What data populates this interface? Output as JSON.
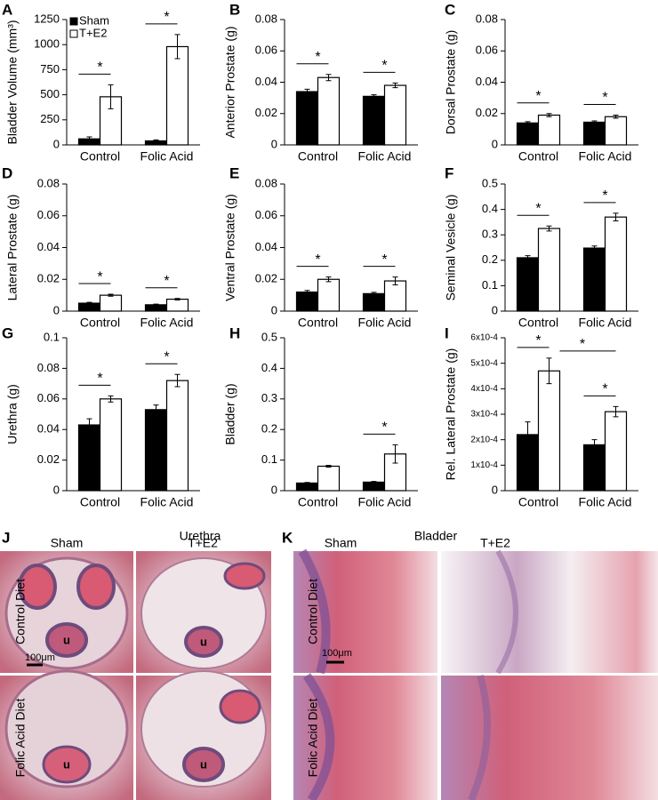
{
  "chart_data": [
    {
      "type": "bar",
      "panel": "A",
      "ylabel": "Bladder Volume (mm³)",
      "categories": [
        "Control",
        "Folic Acid"
      ],
      "legend": "upper left",
      "series": [
        {
          "name": "Sham",
          "color": "#000000",
          "values": [
            60,
            40
          ],
          "errors": [
            20,
            10
          ]
        },
        {
          "name": "T+E2",
          "color": "#ffffff",
          "values": [
            480,
            980
          ],
          "errors": [
            120,
            120
          ]
        }
      ],
      "ylim": [
        0,
        1250
      ],
      "yticks": [
        0,
        250,
        500,
        750,
        1000,
        1250
      ],
      "comparisons": [
        {
          "label": "*",
          "a": [
            0,
            0
          ],
          "b": [
            0,
            1
          ]
        },
        {
          "label": "*",
          "a": [
            1,
            0
          ],
          "b": [
            1,
            1
          ]
        }
      ]
    },
    {
      "type": "bar",
      "panel": "B",
      "ylabel": "Anterior Prostate (g)",
      "categories": [
        "Control",
        "Folic Acid"
      ],
      "series": [
        {
          "color": "#000000",
          "values": [
            0.034,
            0.031
          ],
          "errors": [
            0.0015,
            0.001
          ]
        },
        {
          "color": "#ffffff",
          "values": [
            0.043,
            0.038
          ],
          "errors": [
            0.002,
            0.0015
          ]
        }
      ],
      "ylim": [
        0,
        0.08
      ],
      "yticks": [
        0,
        0.02,
        0.04,
        0.06,
        0.08
      ],
      "comparisons": [
        {
          "label": "*",
          "a": [
            0,
            0
          ],
          "b": [
            0,
            1
          ]
        },
        {
          "label": "*",
          "a": [
            1,
            0
          ],
          "b": [
            1,
            1
          ]
        }
      ]
    },
    {
      "type": "bar",
      "panel": "C",
      "ylabel": "Dorsal Prostate (g)",
      "categories": [
        "Control",
        "Folic Acid"
      ],
      "series": [
        {
          "color": "#000000",
          "values": [
            0.014,
            0.0145
          ],
          "errors": [
            0.0008,
            0.0008
          ]
        },
        {
          "color": "#ffffff",
          "values": [
            0.019,
            0.018
          ],
          "errors": [
            0.001,
            0.001
          ]
        }
      ],
      "ylim": [
        0,
        0.08
      ],
      "yticks": [
        0,
        0.02,
        0.04,
        0.06,
        0.08
      ],
      "comparisons": [
        {
          "label": "*",
          "a": [
            0,
            0
          ],
          "b": [
            0,
            1
          ]
        },
        {
          "label": "*",
          "a": [
            1,
            0
          ],
          "b": [
            1,
            1
          ]
        }
      ]
    },
    {
      "type": "bar",
      "panel": "D",
      "ylabel": "Lateral Prostate (g)",
      "categories": [
        "Control",
        "Folic Acid"
      ],
      "series": [
        {
          "color": "#000000",
          "values": [
            0.005,
            0.004
          ],
          "errors": [
            0.0005,
            0.0004
          ]
        },
        {
          "color": "#ffffff",
          "values": [
            0.01,
            0.0075
          ],
          "errors": [
            0.0006,
            0.0005
          ]
        }
      ],
      "ylim": [
        0,
        0.08
      ],
      "yticks": [
        0,
        0.02,
        0.04,
        0.06,
        0.08
      ],
      "comparisons": [
        {
          "label": "*",
          "a": [
            0,
            0
          ],
          "b": [
            0,
            1
          ]
        },
        {
          "label": "*",
          "a": [
            1,
            0
          ],
          "b": [
            1,
            1
          ]
        }
      ]
    },
    {
      "type": "bar",
      "panel": "E",
      "ylabel": "Ventral Prostate (g)",
      "categories": [
        "Control",
        "Folic Acid"
      ],
      "series": [
        {
          "color": "#000000",
          "values": [
            0.012,
            0.011
          ],
          "errors": [
            0.001,
            0.0008
          ]
        },
        {
          "color": "#ffffff",
          "values": [
            0.02,
            0.019
          ],
          "errors": [
            0.0015,
            0.0025
          ]
        }
      ],
      "ylim": [
        0,
        0.08
      ],
      "yticks": [
        0,
        0.02,
        0.04,
        0.06,
        0.08
      ],
      "comparisons": [
        {
          "label": "*",
          "a": [
            0,
            0
          ],
          "b": [
            0,
            1
          ]
        },
        {
          "label": "*",
          "a": [
            1,
            0
          ],
          "b": [
            1,
            1
          ]
        }
      ]
    },
    {
      "type": "bar",
      "panel": "F",
      "ylabel": "Seminal Vesicle (g)",
      "categories": [
        "Control",
        "Folic Acid"
      ],
      "series": [
        {
          "color": "#000000",
          "values": [
            0.21,
            0.248
          ],
          "errors": [
            0.008,
            0.008
          ]
        },
        {
          "color": "#ffffff",
          "values": [
            0.325,
            0.37
          ],
          "errors": [
            0.01,
            0.015
          ]
        }
      ],
      "ylim": [
        0,
        0.5
      ],
      "yticks": [
        0,
        0.1,
        0.2,
        0.3,
        0.4,
        0.5
      ],
      "comparisons": [
        {
          "label": "*",
          "a": [
            0,
            0
          ],
          "b": [
            0,
            1
          ]
        },
        {
          "label": "*",
          "a": [
            1,
            0
          ],
          "b": [
            1,
            1
          ]
        }
      ]
    },
    {
      "type": "bar",
      "panel": "G",
      "ylabel": "Urethra (g)",
      "categories": [
        "Control",
        "Folic Acid"
      ],
      "series": [
        {
          "color": "#000000",
          "values": [
            0.043,
            0.053
          ],
          "errors": [
            0.004,
            0.003
          ]
        },
        {
          "color": "#ffffff",
          "values": [
            0.06,
            0.072
          ],
          "errors": [
            0.002,
            0.004
          ]
        }
      ],
      "ylim": [
        0,
        0.1
      ],
      "yticks": [
        0,
        0.02,
        0.04,
        0.06,
        0.08,
        0.1
      ],
      "comparisons": [
        {
          "label": "*",
          "a": [
            0,
            0
          ],
          "b": [
            0,
            1
          ]
        },
        {
          "label": "*",
          "a": [
            1,
            0
          ],
          "b": [
            1,
            1
          ]
        }
      ]
    },
    {
      "type": "bar",
      "panel": "H",
      "ylabel": "Bladder (g)",
      "categories": [
        "Control",
        "Folic Acid"
      ],
      "series": [
        {
          "color": "#000000",
          "values": [
            0.025,
            0.028
          ],
          "errors": [
            0.002,
            0.002
          ]
        },
        {
          "color": "#ffffff",
          "values": [
            0.08,
            0.12
          ],
          "errors": [
            0.003,
            0.03
          ]
        }
      ],
      "ylim": [
        0,
        0.5
      ],
      "yticks": [
        0,
        0.1,
        0.2,
        0.3,
        0.4,
        0.5
      ],
      "comparisons": [
        {
          "label": "*",
          "a": [
            1,
            0
          ],
          "b": [
            1,
            1
          ]
        }
      ]
    },
    {
      "type": "bar",
      "panel": "I",
      "ylabel": "Rel. Lateral Prostate (g)",
      "categories": [
        "Control",
        "Folic Acid"
      ],
      "series": [
        {
          "color": "#000000",
          "values": [
            0.00022,
            0.00018
          ],
          "errors": [
            5e-05,
            2e-05
          ]
        },
        {
          "color": "#ffffff",
          "values": [
            0.00047,
            0.00031
          ],
          "errors": [
            5e-05,
            2e-05
          ]
        }
      ],
      "ylim": [
        0,
        0.0006
      ],
      "yticks": [
        0,
        {
          "value": 0.0001,
          "label": "1x10-4"
        },
        {
          "value": 0.0002,
          "label": "2x10-4"
        },
        {
          "value": 0.0003,
          "label": "3x10-4"
        },
        {
          "value": 0.0004,
          "label": "4x10-4"
        },
        {
          "value": 0.0005,
          "label": "5x10-4"
        },
        {
          "value": 0.0006,
          "label": "6x10-4"
        }
      ],
      "comparisons": [
        {
          "label": "*",
          "a": [
            0,
            0
          ],
          "b": [
            0,
            1
          ]
        },
        {
          "label": "*",
          "a": [
            1,
            0
          ],
          "b": [
            1,
            1
          ]
        },
        {
          "label": "*",
          "a": [
            0,
            1
          ],
          "b": [
            1,
            1
          ]
        }
      ]
    }
  ],
  "histology": [
    {
      "panel": "J",
      "title": "Urethra",
      "columns": [
        "Sham",
        "T+E2"
      ],
      "rows": [
        "Control Diet",
        "Folic Acid Diet"
      ],
      "scale_bar": "100μm",
      "marker": "u"
    },
    {
      "panel": "K",
      "title": "Bladder",
      "columns": [
        "Sham",
        "T+E2"
      ],
      "rows": [
        "Control Diet",
        "Folic Acid Diet"
      ],
      "scale_bar": "100μm"
    }
  ]
}
